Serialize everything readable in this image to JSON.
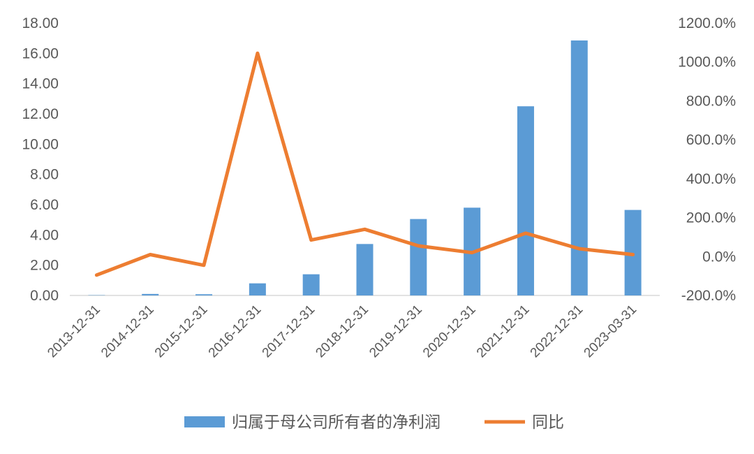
{
  "chart_data": {
    "type": "bar",
    "categories": [
      "2013-12-31",
      "2014-12-31",
      "2015-12-31",
      "2016-12-31",
      "2017-12-31",
      "2018-12-31",
      "2019-12-31",
      "2020-12-31",
      "2021-12-31",
      "2022-12-31",
      "2023-03-31"
    ],
    "series": [
      {
        "name": "归属于母公司所有者的净利润",
        "type": "bar",
        "axis": "left",
        "color": "#5B9BD5",
        "values": [
          0.02,
          0.1,
          0.08,
          0.8,
          1.4,
          3.4,
          5.05,
          5.8,
          12.5,
          16.85,
          5.65
        ]
      },
      {
        "name": "同比",
        "type": "line",
        "axis": "right",
        "color": "#ED7D31",
        "values": [
          -95,
          10,
          -45,
          1045,
          85,
          140,
          55,
          20,
          120,
          40,
          10
        ]
      }
    ],
    "y_left": {
      "ylim": [
        0,
        18
      ],
      "ticks": [
        "0.00",
        "2.00",
        "4.00",
        "6.00",
        "8.00",
        "10.00",
        "12.00",
        "14.00",
        "16.00",
        "18.00"
      ]
    },
    "y_right": {
      "ylim": [
        -200,
        1200
      ],
      "ticks": [
        "-200.0%",
        "0.0%",
        "200.0%",
        "400.0%",
        "600.0%",
        "800.0%",
        "1000.0%",
        "1200.0%"
      ]
    },
    "grid": false,
    "legend_position": "bottom"
  }
}
